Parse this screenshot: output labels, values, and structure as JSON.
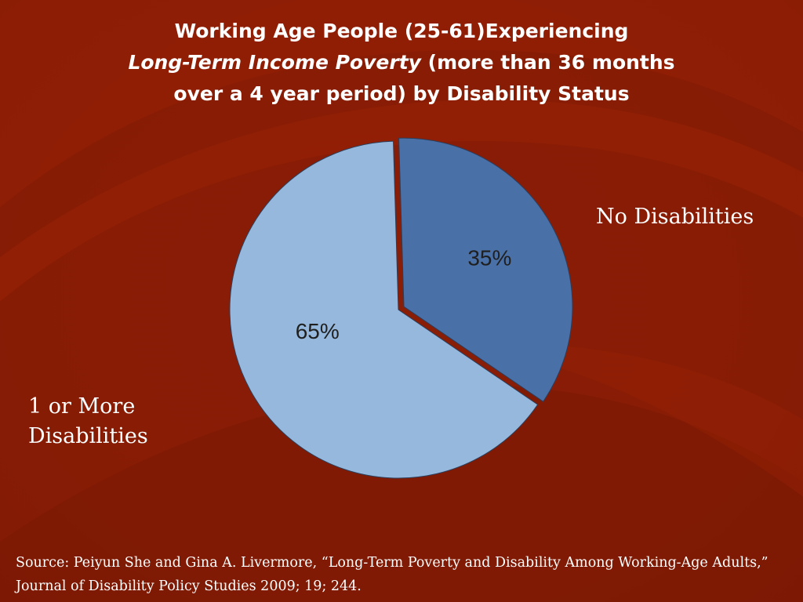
{
  "title": {
    "line1": "Working Age People (25-61)Experiencing",
    "line2_italic": "Long-Term Income Poverty",
    "line2_rest": " (more than 36 months",
    "line3": "over a 4 year period) by Disability Status"
  },
  "chart_data": {
    "type": "pie",
    "slices": [
      {
        "label": "No Disabilities",
        "value": 35,
        "display": "35%",
        "color": "#4a70a8"
      },
      {
        "label": "1 or More Disabilities",
        "value": 65,
        "display": "65%",
        "color": "#95b8dc"
      }
    ]
  },
  "labels": {
    "no_disabilities": "No Disabilities",
    "one_or_more_line1": "1 or More",
    "one_or_more_line2": "Disabilities"
  },
  "source": {
    "text": "Source: Peiyun She and Gina A. Livermore, “Long-Term Poverty and Disability Among Working-Age Adults,” Journal of Disability Policy Studies 2009; 19; 244."
  },
  "colors": {
    "background": "#8a1d06",
    "text": "#ffffff",
    "slice_no_disabilities": "#4a70a8",
    "slice_disabilities": "#95b8dc",
    "pie_label": "#1f1f1f"
  }
}
